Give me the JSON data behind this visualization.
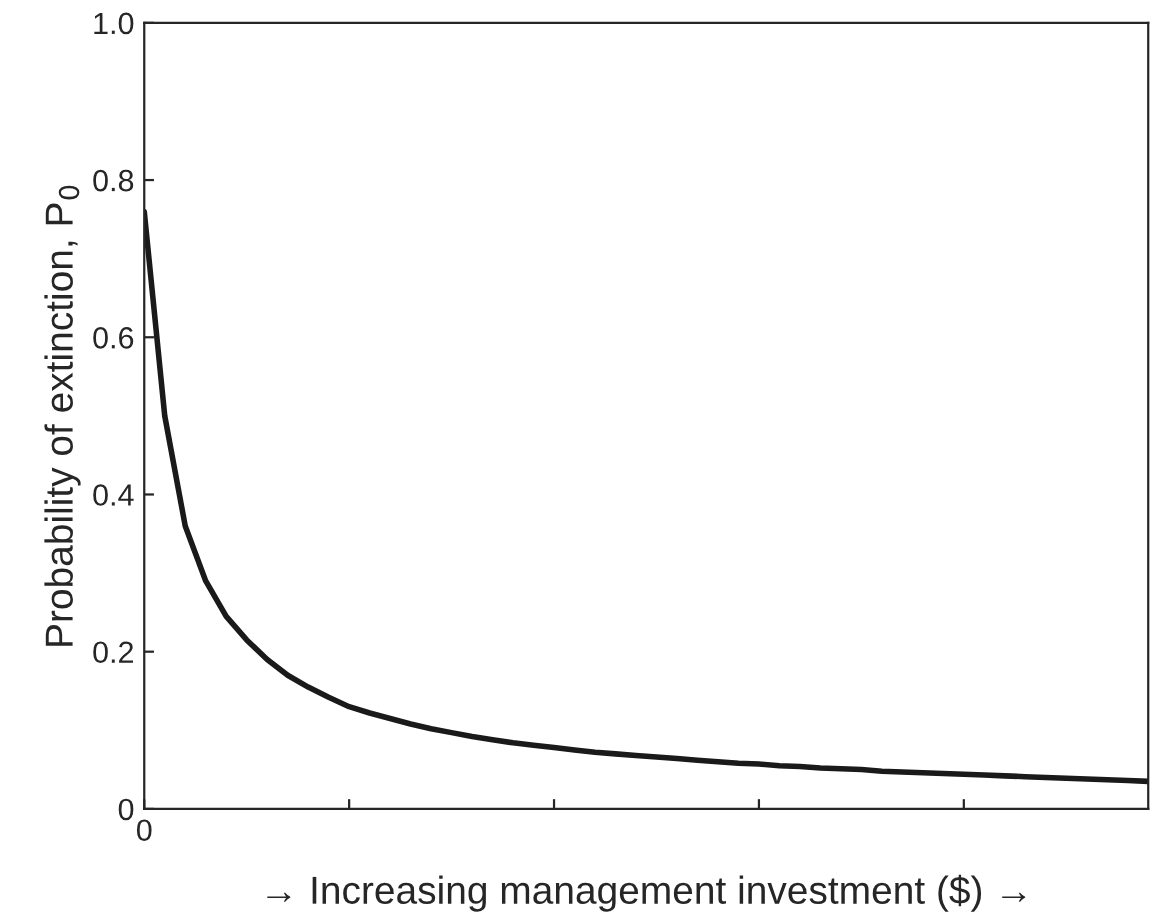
{
  "chart_data": {
    "type": "line",
    "xlabel": "→ Increasing management investment ($) →",
    "ylabel": "Probability of extinction, P$_{0}$",
    "categories": [
      "0",
      null,
      null,
      null,
      null,
      null,
      null,
      null,
      null,
      null,
      null,
      null,
      null,
      null,
      null,
      null,
      null,
      null,
      null,
      null,
      null,
      null,
      null,
      null,
      null,
      null,
      null,
      null,
      null,
      null,
      null,
      null,
      null,
      null,
      null,
      null,
      null,
      null,
      null,
      null,
      null,
      null,
      null,
      null,
      null,
      null,
      null,
      null,
      null,
      null
    ],
    "series": [
      {
        "color": "#1a1a1a",
        "values": [
          0.76,
          0.5,
          0.36,
          0.29,
          0.245,
          0.215,
          0.19,
          0.17,
          0.155,
          0.142,
          0.13,
          0.122,
          0.115,
          0.108,
          0.102,
          0.097,
          0.092,
          0.088,
          0.084,
          0.081,
          0.078,
          0.075,
          0.072,
          0.07,
          0.068,
          0.066,
          0.064,
          0.062,
          0.06,
          0.058,
          0.057,
          0.055,
          0.054,
          0.052,
          0.051,
          0.05,
          0.048,
          0.047,
          0.046,
          0.045,
          0.044,
          0.043,
          0.042,
          0.041,
          0.04,
          0.039,
          0.038,
          0.037,
          0.036,
          0.035
        ]
      }
    ],
    "ylim": [
      0,
      1.0
    ],
    "yticks": [
      {
        "value": 0,
        "label": "0"
      },
      {
        "value": 0.2,
        "label": "0.2"
      },
      {
        "value": 0.4,
        "label": "0.4"
      },
      {
        "value": 0.6,
        "label": "0.6"
      },
      {
        "value": 0.8,
        "label": "0.8"
      },
      {
        "value": 1.0,
        "label": "1.0"
      }
    ],
    "grid": false,
    "legend": false,
    "marker": "none",
    "line_style": "solid"
  }
}
